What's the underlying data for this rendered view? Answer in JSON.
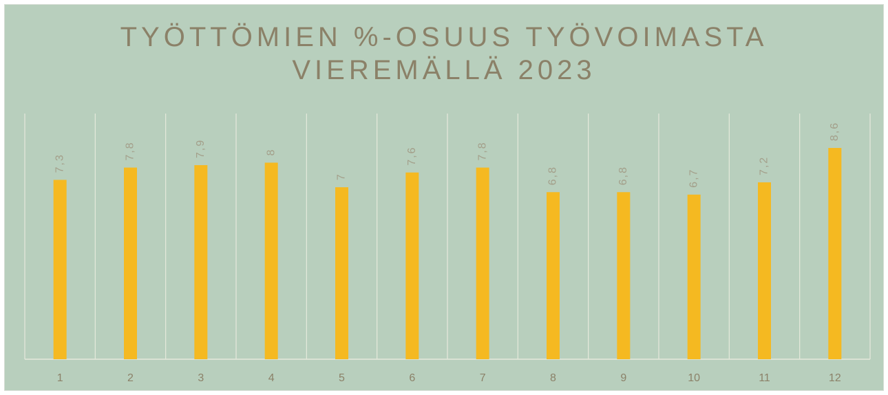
{
  "chart_data": {
    "type": "bar",
    "title": "TYÖTTÖMIEN %-OSUUS TYÖVOIMASTA VIEREMÄLLÄ 2023",
    "categories": [
      "1",
      "2",
      "3",
      "4",
      "5",
      "6",
      "7",
      "8",
      "9",
      "10",
      "11",
      "12"
    ],
    "values": [
      7.3,
      7.8,
      7.9,
      8,
      7,
      7.6,
      7.8,
      6.8,
      6.8,
      6.7,
      7.2,
      8.6
    ],
    "value_labels": [
      "7,3",
      "7,8",
      "7,9",
      "8",
      "7",
      "7,6",
      "7,8",
      "6,8",
      "6,8",
      "6,7",
      "7,2",
      "8,6"
    ],
    "color": "#f5b921",
    "ylim": [
      0,
      10
    ]
  }
}
